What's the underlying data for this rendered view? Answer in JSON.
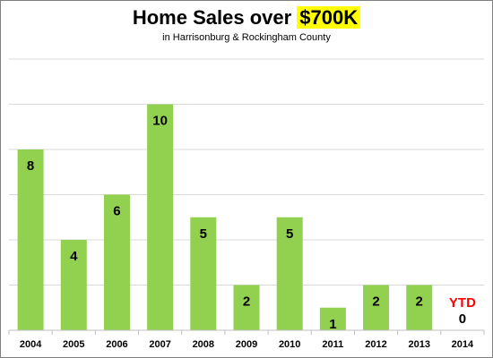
{
  "chart_data": {
    "type": "bar",
    "title_prefix": "Home Sales over ",
    "title_highlight": "$700K",
    "subtitle": "in Harrisonburg & Rockingham County",
    "categories": [
      "2004",
      "2005",
      "2006",
      "2007",
      "2008",
      "2009",
      "2010",
      "2011",
      "2012",
      "2013",
      "2014"
    ],
    "values": [
      8,
      4,
      6,
      10,
      5,
      2,
      5,
      1,
      2,
      2,
      0
    ],
    "annotation": "YTD",
    "ylim": [
      0,
      12
    ],
    "grid": true,
    "bar_color": "#92d050",
    "annotation_color": "#ff0000",
    "highlight_color": "#ffff00"
  }
}
